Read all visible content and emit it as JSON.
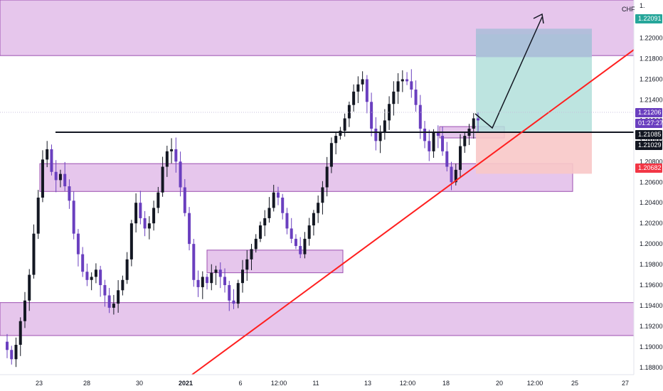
{
  "chart_data": {
    "type": "candlestick",
    "y_axis": {
      "min": 1.1873,
      "max": 1.2237,
      "ticks": [
        "1.18800",
        "1.19000",
        "1.19200",
        "1.19400",
        "1.19600",
        "1.19800",
        "1.20000",
        "1.20200",
        "1.20400",
        "1.20600",
        "1.20800",
        "1.21000",
        "1.21200",
        "1.21400",
        "1.21600",
        "1.21800",
        "1.22000"
      ],
      "top_partial_label": "1.",
      "currency": "CHF"
    },
    "x_axis": {
      "ticks": [
        {
          "label": "23",
          "bold": false
        },
        {
          "label": "28",
          "bold": false
        },
        {
          "label": "30",
          "bold": false
        },
        {
          "label": "2021",
          "bold": true
        },
        {
          "label": "6",
          "bold": false
        },
        {
          "label": "12:00",
          "bold": false
        },
        {
          "label": "11",
          "bold": false
        },
        {
          "label": "13",
          "bold": false
        },
        {
          "label": "12:00",
          "bold": false
        },
        {
          "label": "18",
          "bold": false
        },
        {
          "label": "20",
          "bold": false
        },
        {
          "label": "12:00",
          "bold": false
        },
        {
          "label": "25",
          "bold": false
        },
        {
          "label": "27",
          "bold": false
        }
      ]
    },
    "price_tags": [
      {
        "text": "1.22091",
        "value": 1.22091,
        "color": "#26a69a"
      },
      {
        "text": "1.21206",
        "value": 1.21206,
        "color": "#6a3fbf"
      },
      {
        "text": "01:27:27",
        "value": 1.2116,
        "color": "#6a3fbf"
      },
      {
        "text": "1.21085",
        "value": 1.21085,
        "color": "#131722"
      },
      {
        "text": "1.21029",
        "value": 1.21029,
        "color": "#131722"
      },
      {
        "text": "1.20682",
        "value": 1.20682,
        "color": "#f23645"
      }
    ],
    "zones": [
      {
        "from": 1.2183,
        "to": 1.2237,
        "color": "#e6c6ec"
      },
      {
        "from": 1.2051,
        "to": 1.2078,
        "color": "#e6c6ec"
      },
      {
        "from": 1.1972,
        "to": 1.1994,
        "color": "#e6c6ec"
      },
      {
        "from": 1.1911,
        "to": 1.1943,
        "color": "#e6c6ec"
      },
      {
        "from": 1.2103,
        "to": 1.2114,
        "color": "#e6c6ec"
      }
    ],
    "horizontal_line": 1.21085,
    "trendline_color": "#ff1f1f",
    "position": {
      "entry": 1.21085,
      "target": 1.22091,
      "stop": 1.20682,
      "profit_color": "#b2dfdb",
      "loss_color": "#f8c8c8",
      "target_fill": "#a9bcd8"
    },
    "candle_up_color": "#131722",
    "candle_down_color": "#6a3fbf",
    "close_path": [
      1.1897,
      1.1888,
      1.1902,
      1.1925,
      1.1945,
      1.197,
      1.201,
      1.2045,
      1.2082,
      1.2092,
      1.207,
      1.2062,
      1.2068,
      1.2056,
      1.2042,
      1.201,
      1.199,
      1.1973,
      1.1965,
      1.1968,
      1.1975,
      1.196,
      1.195,
      1.1938,
      1.1942,
      1.1955,
      1.1965,
      1.1985,
      1.202,
      1.204,
      1.2025,
      1.2015,
      1.202,
      1.2035,
      1.205,
      1.2075,
      1.209,
      1.2092,
      1.208,
      1.2055,
      1.203,
      1.2,
      1.1965,
      1.1958,
      1.1968,
      1.1962,
      1.1972,
      1.1975,
      1.1968,
      1.196,
      1.1945,
      1.1942,
      1.1962,
      1.1975,
      1.1985,
      1.1995,
      1.2005,
      1.2018,
      1.2025,
      1.2035,
      1.205,
      1.2045,
      1.203,
      1.2015,
      1.2005,
      1.1998,
      1.199,
      1.2005,
      1.2018,
      1.203,
      1.204,
      1.2055,
      1.2075,
      1.2098,
      1.2105,
      1.211,
      1.2122,
      1.2135,
      1.2148,
      1.2155,
      1.216,
      1.2138,
      1.2112,
      1.21,
      1.2108,
      1.212,
      1.2136,
      1.2148,
      1.2158,
      1.216,
      1.2158,
      1.215,
      1.2135,
      1.2112,
      1.21,
      1.209,
      1.2108,
      1.2105,
      1.209,
      1.2075,
      1.206,
      1.2072,
      1.2095,
      1.2105,
      1.2112,
      1.2122,
      1.212
    ]
  }
}
